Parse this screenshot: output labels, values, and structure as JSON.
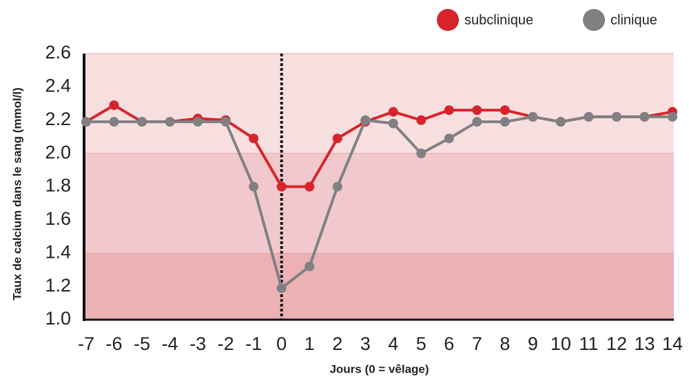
{
  "chart_data": {
    "type": "line",
    "x_label": "Jours (0 = vêlage)",
    "y_label": "Taux de calcium dans le sang (mmol/l)",
    "x": [
      -7,
      -6,
      -5,
      -4,
      -3,
      -2,
      -1,
      0,
      1,
      2,
      3,
      4,
      5,
      6,
      7,
      8,
      9,
      10,
      11,
      12,
      13,
      14
    ],
    "series": [
      {
        "name": "subclinique",
        "color": "#d7242b",
        "values": [
          2.19,
          2.29,
          2.19,
          2.19,
          2.21,
          2.2,
          2.09,
          1.8,
          1.8,
          2.09,
          2.19,
          2.25,
          2.2,
          2.26,
          2.26,
          2.26,
          2.22,
          2.19,
          2.22,
          2.22,
          2.22,
          2.25
        ]
      },
      {
        "name": "clinique",
        "color": "#808083",
        "values": [
          2.19,
          2.19,
          2.19,
          2.19,
          2.19,
          2.19,
          1.8,
          1.19,
          1.32,
          1.8,
          2.2,
          2.18,
          2.0,
          2.09,
          2.19,
          2.19,
          2.22,
          2.19,
          2.22,
          2.22,
          2.22,
          2.22
        ]
      }
    ],
    "xlim": [
      -7,
      14
    ],
    "xticks": [
      -7,
      -6,
      -5,
      -4,
      -3,
      -2,
      -1,
      0,
      1,
      2,
      3,
      4,
      5,
      6,
      7,
      8,
      9,
      10,
      11,
      12,
      13,
      14
    ],
    "ylim": [
      1.0,
      2.6
    ],
    "yticks": [
      {
        "value": 1.0,
        "label": "1.0"
      },
      1.2,
      1.4,
      1.6,
      1.8,
      {
        "value": 2.0,
        "label": "2.0"
      },
      2.2,
      2.4,
      2.6
    ],
    "bands": [
      {
        "from": 2.0,
        "to": 2.6,
        "color": "#f7dfe0"
      },
      {
        "from": 1.4,
        "to": 2.0,
        "color": "#f1c9cc"
      },
      {
        "from": 1.0,
        "to": 1.4,
        "color": "#ebb1b5"
      }
    ],
    "vline": 0,
    "legend": "top-right"
  }
}
